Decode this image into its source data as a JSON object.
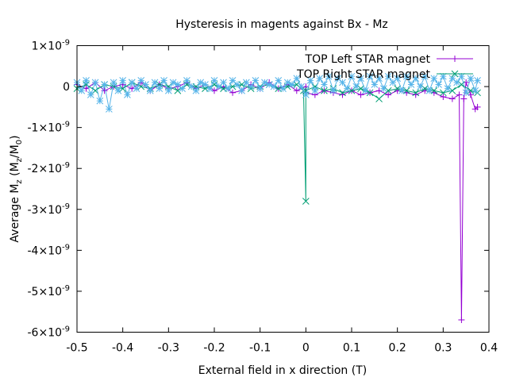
{
  "chart_data": {
    "type": "line",
    "title": "Hysteresis in magents against Bx - Mz",
    "xlabel": "External field in x direction (T)",
    "ylabel": {
      "prefix": "Average M",
      "sub1": "z",
      "mid": " (M",
      "sub2": "z",
      "slash": "/M",
      "sub3": "0",
      "suffix": ")"
    },
    "xlim": [
      -0.5,
      0.4
    ],
    "ylim": [
      -6e-09,
      1e-09
    ],
    "x_ticks": [
      {
        "v": -0.5,
        "label": "-0.5"
      },
      {
        "v": -0.4,
        "label": "-0.4"
      },
      {
        "v": -0.3,
        "label": "-0.3"
      },
      {
        "v": -0.2,
        "label": "-0.2"
      },
      {
        "v": -0.1,
        "label": "-0.1"
      },
      {
        "v": 0.0,
        "label": "0"
      },
      {
        "v": 0.1,
        "label": "0.1"
      },
      {
        "v": 0.2,
        "label": "0.2"
      },
      {
        "v": 0.3,
        "label": "0.3"
      },
      {
        "v": 0.4,
        "label": "0.4"
      }
    ],
    "y_ticks": [
      {
        "v": 1e-09,
        "mant": "1",
        "exp": "-9"
      },
      {
        "v": 0,
        "mant": "0",
        "exp": ""
      },
      {
        "v": -1e-09,
        "mant": "-1",
        "exp": "-9"
      },
      {
        "v": -2e-09,
        "mant": "-2",
        "exp": "-9"
      },
      {
        "v": -3e-09,
        "mant": "-3",
        "exp": "-9"
      },
      {
        "v": -4e-09,
        "mant": "-4",
        "exp": "-9"
      },
      {
        "v": -5e-09,
        "mant": "-5",
        "exp": "-9"
      },
      {
        "v": -6e-09,
        "mant": "-6",
        "exp": "-9"
      }
    ],
    "grid": false,
    "legend_position": "top-right",
    "series": [
      {
        "name": "TOP Left STAR magnet",
        "color": "#9400d3",
        "marker": "plus",
        "x": [
          -0.5,
          -0.48,
          -0.46,
          -0.44,
          -0.42,
          -0.4,
          -0.38,
          -0.36,
          -0.34,
          -0.32,
          -0.3,
          -0.28,
          -0.26,
          -0.24,
          -0.22,
          -0.2,
          -0.18,
          -0.16,
          -0.14,
          -0.12,
          -0.1,
          -0.08,
          -0.06,
          -0.04,
          -0.02,
          0.0,
          0.0,
          0.02,
          0.04,
          0.06,
          0.08,
          0.1,
          0.12,
          0.14,
          0.16,
          0.18,
          0.2,
          0.22,
          0.24,
          0.26,
          0.28,
          0.3,
          0.32,
          0.335,
          0.34,
          0.345,
          0.35,
          0.36,
          0.37,
          0.375
        ],
        "y": [
          5e-11,
          -5e-11,
          1e-10,
          -1e-10,
          0.0,
          5e-11,
          -5e-11,
          1e-10,
          -1e-10,
          5e-11,
          -5e-11,
          0.0,
          1e-10,
          -5e-11,
          5e-11,
          -1e-10,
          0.0,
          -1.5e-10,
          -1e-10,
          5e-11,
          -5e-11,
          1e-10,
          -5e-11,
          5e-11,
          -1e-10,
          0.0,
          -1.5e-10,
          -2e-10,
          -1e-10,
          -1.5e-10,
          -2e-10,
          -1e-10,
          -2e-10,
          -1.5e-10,
          -1e-10,
          -2e-10,
          -1e-10,
          -1.5e-10,
          -2e-10,
          -1e-10,
          -1.5e-10,
          -2.5e-10,
          -3e-10,
          -2e-10,
          -5.7e-09,
          -3e-10,
          1e-10,
          -2e-10,
          -5.5e-10,
          -5e-10
        ]
      },
      {
        "name": "TOP Right STAR magnet",
        "color": "#009e73",
        "marker": "cross",
        "x": [
          -0.5,
          -0.48,
          -0.46,
          -0.44,
          -0.42,
          -0.4,
          -0.38,
          -0.36,
          -0.34,
          -0.32,
          -0.3,
          -0.28,
          -0.26,
          -0.24,
          -0.22,
          -0.2,
          -0.18,
          -0.16,
          -0.14,
          -0.12,
          -0.1,
          -0.08,
          -0.06,
          -0.04,
          -0.02,
          -0.005,
          0.0,
          0.0,
          0.02,
          0.04,
          0.06,
          0.08,
          0.1,
          0.12,
          0.14,
          0.16,
          0.18,
          0.2,
          0.22,
          0.24,
          0.26,
          0.28,
          0.3,
          0.32,
          0.34,
          0.36,
          0.375
        ],
        "y": [
          -5e-11,
          5e-11,
          -1e-10,
          5e-11,
          0.0,
          -5e-11,
          1e-10,
          0.0,
          -5e-11,
          5e-11,
          0.0,
          -1e-10,
          5e-11,
          0.0,
          -5e-11,
          5e-11,
          -5e-11,
          0.0,
          5e-11,
          -5e-11,
          0.0,
          5e-11,
          -5e-11,
          0.0,
          5e-11,
          -1e-10,
          -2.8e-09,
          -1e-10,
          0.0,
          -1e-10,
          -5e-11,
          -1.5e-10,
          -1e-10,
          -5e-11,
          -1.5e-10,
          -3e-10,
          -1e-10,
          -5e-11,
          -1e-10,
          -1.5e-10,
          -5e-11,
          -1e-10,
          -1.5e-10,
          -1e-10,
          5e-11,
          -1e-10,
          -1.5e-10
        ]
      },
      {
        "name": "",
        "color": "#56b4e9",
        "marker": "star",
        "x": [
          -0.5,
          -0.49,
          -0.48,
          -0.47,
          -0.46,
          -0.45,
          -0.44,
          -0.43,
          -0.42,
          -0.41,
          -0.4,
          -0.39,
          -0.38,
          -0.37,
          -0.36,
          -0.35,
          -0.34,
          -0.33,
          -0.32,
          -0.31,
          -0.3,
          -0.29,
          -0.28,
          -0.27,
          -0.26,
          -0.25,
          -0.24,
          -0.23,
          -0.22,
          -0.21,
          -0.2,
          -0.19,
          -0.18,
          -0.17,
          -0.16,
          -0.15,
          -0.14,
          -0.13,
          -0.12,
          -0.11,
          -0.1,
          -0.09,
          -0.08,
          -0.07,
          -0.06,
          -0.05,
          -0.04,
          -0.03,
          -0.02,
          -0.01,
          0.0,
          0.01,
          0.02,
          0.03,
          0.04,
          0.05,
          0.06,
          0.07,
          0.08,
          0.09,
          0.1,
          0.11,
          0.12,
          0.13,
          0.14,
          0.15,
          0.16,
          0.17,
          0.18,
          0.19,
          0.2,
          0.21,
          0.22,
          0.23,
          0.24,
          0.25,
          0.26,
          0.27,
          0.28,
          0.29,
          0.3,
          0.31,
          0.32,
          0.33,
          0.34,
          0.35,
          0.36,
          0.37,
          0.375
        ],
        "y": [
          1e-10,
          -1e-10,
          1.5e-10,
          -2e-10,
          1e-10,
          -3.5e-10,
          5e-11,
          -5.5e-10,
          1e-10,
          -1e-10,
          1.5e-10,
          -2e-10,
          1e-10,
          -5e-11,
          1.5e-10,
          5e-11,
          -1e-10,
          1e-10,
          -5e-11,
          1.5e-10,
          -1e-10,
          1e-10,
          5e-11,
          -5e-11,
          1.5e-10,
          0.0,
          -1e-10,
          1e-10,
          5e-11,
          -5e-11,
          1.5e-10,
          0.0,
          1e-10,
          -5e-11,
          1.5e-10,
          5e-11,
          -1e-10,
          1e-10,
          0.0,
          1.5e-10,
          -5e-11,
          1e-10,
          5e-11,
          0.0,
          1.5e-10,
          -5e-11,
          1e-10,
          5e-11,
          2e-10,
          0.0,
          -2e-10,
          1.5e-10,
          -1e-10,
          2e-10,
          5e-11,
          2.5e-10,
          -1e-10,
          2e-10,
          1e-10,
          -5e-11,
          2.5e-10,
          0.0,
          2e-10,
          -1e-10,
          2.5e-10,
          5e-11,
          2e-10,
          -5e-11,
          2.5e-10,
          1e-10,
          2e-10,
          -1e-10,
          2.5e-10,
          5e-11,
          2e-10,
          0.0,
          2.5e-10,
          -1e-10,
          2e-10,
          5e-11,
          2.5e-10,
          -5e-11,
          2e-10,
          1e-10,
          2.5e-10,
          -1.5e-10,
          2e-10,
          -1e-10,
          1.5e-10
        ]
      }
    ]
  }
}
